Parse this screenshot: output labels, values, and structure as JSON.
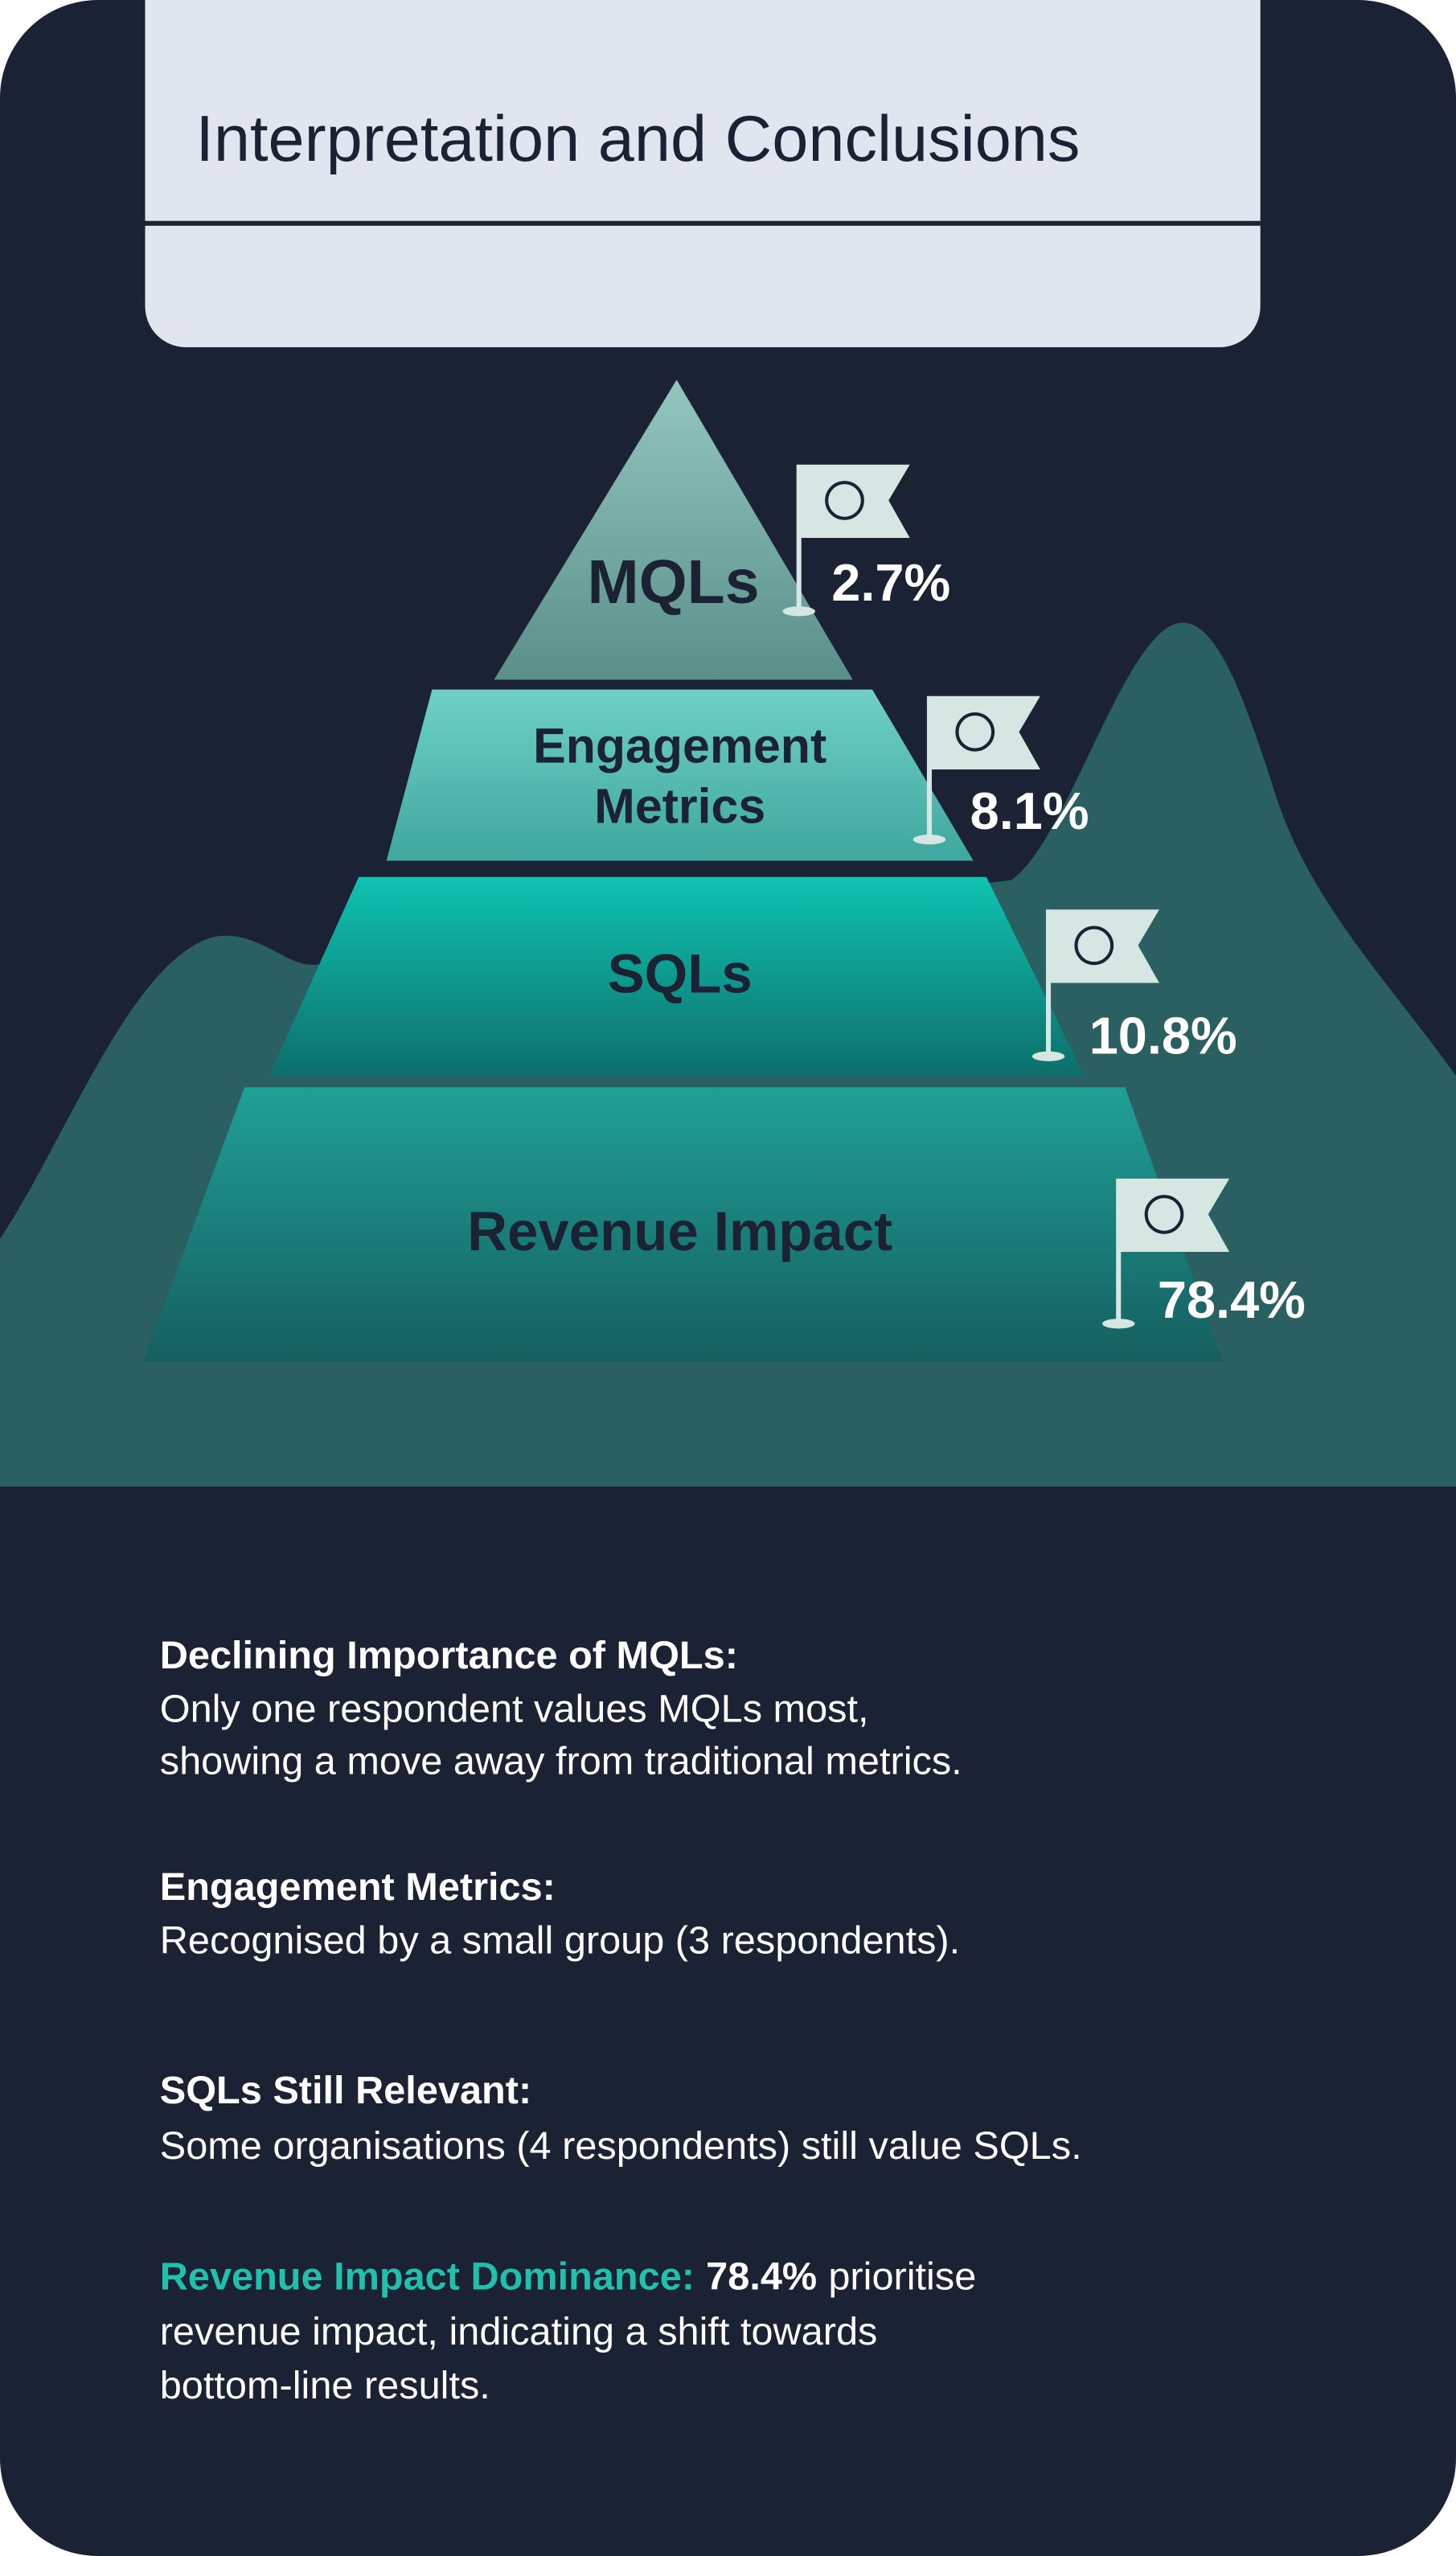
{
  "header": {
    "title": "Interpretation and Conclusions"
  },
  "pyramid": [
    {
      "label_lines": [
        "MQLs"
      ],
      "percent": "2.7%"
    },
    {
      "label_lines": [
        "Engagement",
        "Metrics"
      ],
      "percent": "8.1%"
    },
    {
      "label_lines": [
        "SQLs"
      ],
      "percent": "10.8%"
    },
    {
      "label_lines": [
        "Revenue Impact"
      ],
      "percent": "78.4%"
    }
  ],
  "findings": [
    {
      "heading": "Declining Importance of MQLs:",
      "lines": [
        "Only one respondent values MQLs most,",
        "showing a move away from traditional metrics."
      ]
    },
    {
      "heading": "Engagement Metrics:",
      "lines": [
        "Recognised by a small group (3 respondents)."
      ]
    },
    {
      "heading": "SQLs Still Relevant:",
      "lines": [
        "Some organisations (4 respondents) still value SQLs."
      ]
    },
    {
      "heading": "Revenue Impact Dominance:",
      "emphasis": "78.4%",
      "first_line_rest": "prioritise",
      "lines": [
        "revenue impact, indicating a shift towards",
        "bottom-line results."
      ]
    }
  ]
}
